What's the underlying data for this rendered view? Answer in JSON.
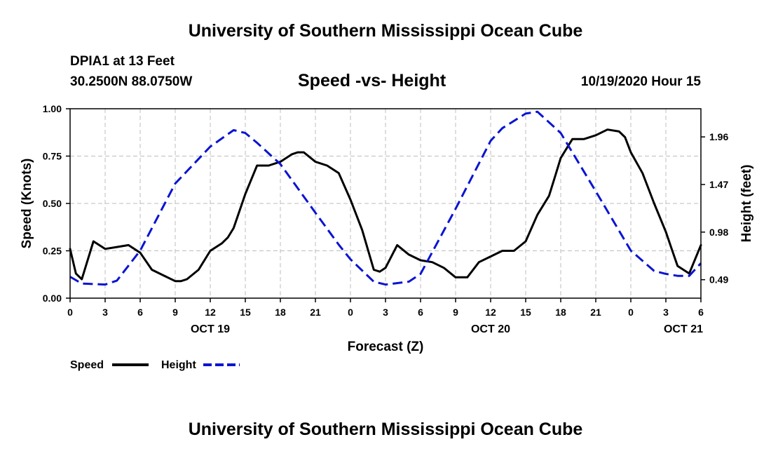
{
  "header": {
    "title": "University of Southern Mississippi Ocean Cube",
    "station": "DPIA1 at 13 Feet",
    "coords": "30.2500N 88.0750W",
    "timestamp": "10/19/2020 Hour 15"
  },
  "footer": {
    "title": "University of Southern Mississippi Ocean Cube"
  },
  "chart_data": {
    "type": "line",
    "title": "Speed -vs- Height",
    "xlabel": "Forecast (Z)",
    "ylabel_left": "Speed (Knots)",
    "ylabel_right": "Height (feet)",
    "xlim": [
      0,
      54
    ],
    "ylim_left": [
      0,
      1.0
    ],
    "ylim_right": [
      0.3,
      2.25
    ],
    "grid": true,
    "x_ticks": [
      0,
      3,
      6,
      9,
      12,
      15,
      18,
      21,
      24,
      27,
      30,
      33,
      36,
      39,
      42,
      45,
      48,
      51,
      54
    ],
    "x_tick_labels": [
      "0",
      "3",
      "6",
      "9",
      "12",
      "15",
      "18",
      "21",
      "0",
      "3",
      "6",
      "9",
      "12",
      "15",
      "18",
      "21",
      "0",
      "3",
      "6"
    ],
    "y_ticks_left": [
      0,
      0.25,
      0.5,
      0.75,
      1.0
    ],
    "y_tick_labels_left": [
      "0.00",
      "0.25",
      "0.50",
      "0.75",
      "1.00"
    ],
    "y_ticks_right": [
      0.49,
      0.98,
      1.47,
      1.96
    ],
    "y_tick_labels_right": [
      "0.49",
      "0.98",
      "1.47",
      "1.96"
    ],
    "date_labels": [
      {
        "x": 12,
        "label": "OCT 19"
      },
      {
        "x": 36,
        "label": "OCT 20"
      },
      {
        "x": 52.5,
        "label": "OCT 21"
      }
    ],
    "legend": {
      "placement": "bottom-left"
    },
    "series": [
      {
        "name": "Speed",
        "axis": "left",
        "color": "#000000",
        "style": "solid",
        "x": [
          0,
          0.5,
          1,
          2,
          3,
          4,
          5,
          6,
          7,
          8,
          9,
          9.5,
          10,
          11,
          12,
          13,
          13.5,
          14,
          15,
          16,
          17,
          18,
          19,
          19.5,
          20,
          21,
          22,
          23,
          24,
          25,
          26,
          26.5,
          27,
          28,
          29,
          30,
          31,
          32,
          33,
          34,
          35,
          36,
          37,
          38,
          39,
          40,
          41,
          41.5,
          42,
          43,
          44,
          45,
          46,
          47,
          47.5,
          48,
          49,
          50,
          51,
          51.5,
          52,
          53,
          54
        ],
        "y": [
          0.26,
          0.13,
          0.1,
          0.3,
          0.26,
          0.27,
          0.28,
          0.24,
          0.15,
          0.12,
          0.09,
          0.09,
          0.1,
          0.15,
          0.25,
          0.29,
          0.32,
          0.37,
          0.55,
          0.7,
          0.7,
          0.72,
          0.76,
          0.77,
          0.77,
          0.72,
          0.7,
          0.66,
          0.52,
          0.36,
          0.15,
          0.14,
          0.16,
          0.28,
          0.23,
          0.2,
          0.19,
          0.16,
          0.11,
          0.11,
          0.19,
          0.22,
          0.25,
          0.25,
          0.3,
          0.44,
          0.54,
          0.64,
          0.74,
          0.84,
          0.84,
          0.86,
          0.89,
          0.88,
          0.85,
          0.77,
          0.66,
          0.5,
          0.35,
          0.26,
          0.17,
          0.13,
          0.28
        ]
      },
      {
        "name": "Height",
        "axis": "right",
        "color": "#0a14d2",
        "style": "dashed",
        "x": [
          0,
          1,
          3,
          4,
          6,
          9,
          12,
          14,
          15,
          16,
          18,
          21,
          23,
          24,
          26,
          27,
          29,
          30,
          33,
          36,
          37,
          39,
          40,
          42,
          45,
          48,
          50,
          51,
          52,
          53,
          54
        ],
        "y": [
          0.52,
          0.45,
          0.44,
          0.48,
          0.79,
          1.48,
          1.86,
          2.03,
          2.0,
          1.9,
          1.68,
          1.18,
          0.85,
          0.7,
          0.47,
          0.44,
          0.47,
          0.55,
          1.22,
          1.92,
          2.05,
          2.2,
          2.22,
          2.0,
          1.4,
          0.79,
          0.58,
          0.55,
          0.53,
          0.53,
          0.66
        ]
      }
    ]
  }
}
